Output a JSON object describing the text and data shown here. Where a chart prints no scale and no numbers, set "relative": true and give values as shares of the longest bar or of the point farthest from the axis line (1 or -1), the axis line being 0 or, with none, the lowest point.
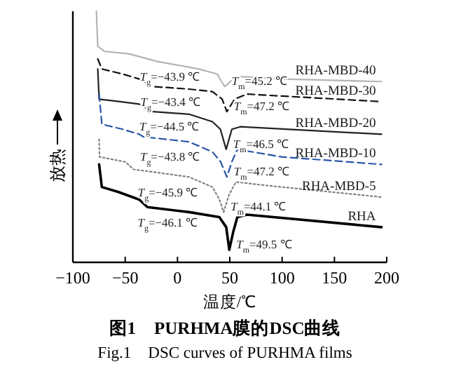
{
  "chart_data": {
    "type": "line",
    "relative": true,
    "title": "图1　PURHMA膜的DSC曲线",
    "subtitle": "Fig.1　DSC curves of PURHMA films",
    "xlabel": "温度/℃",
    "ylabel": "放热",
    "xlim": [
      -100,
      200
    ],
    "xticks": [
      -100,
      -50,
      0,
      50,
      100,
      150,
      200
    ],
    "tick_labels": "x",
    "grid": false,
    "legend": false,
    "marker": "none",
    "series": [
      {
        "name": "RHA-MBD-40",
        "color": "#b4b4b4",
        "line_style": "solid",
        "x": [
          -77.5,
          -76.2,
          -69.6,
          -45.8,
          -19.4,
          20.2,
          38,
          42,
          45.2,
          50.6,
          54.6,
          59.8,
          99.5,
          195
        ],
        "values": [
          1.0,
          0.86,
          0.84,
          0.83,
          0.8,
          0.77,
          0.75,
          0.72,
          0.7,
          0.72,
          0.74,
          0.74,
          0.73,
          0.72
        ]
      },
      {
        "name": "RHA-MBD-30",
        "color": "#111111",
        "line_style": "dashed",
        "x": [
          -76.2,
          -72.3,
          -52.4,
          -36.6,
          -23.4,
          11,
          33.4,
          42.7,
          47.2,
          54.6,
          66.4,
          195
        ],
        "values": [
          0.81,
          0.77,
          0.75,
          0.73,
          0.7,
          0.69,
          0.68,
          0.65,
          0.6,
          0.65,
          0.67,
          0.64
        ]
      },
      {
        "name": "RHA-MBD-20",
        "color": "#222222",
        "line_style": "solid",
        "x": [
          -76.2,
          -74.9,
          -55.1,
          -36.6,
          -23.4,
          11,
          33.4,
          41,
          46.5,
          52,
          60,
          195
        ],
        "values": [
          0.77,
          0.65,
          0.64,
          0.63,
          0.6,
          0.59,
          0.56,
          0.53,
          0.45,
          0.53,
          0.54,
          0.51
        ]
      },
      {
        "name": "RHA-MBD-10",
        "color": "#2a55a8",
        "line_style": "dashed",
        "x": [
          -74.9,
          -72.3,
          -52.4,
          -36.6,
          -32.6,
          11,
          33.4,
          41.3,
          47.2,
          51.9,
          57.2,
          99.5,
          195
        ],
        "values": [
          0.67,
          0.55,
          0.53,
          0.51,
          0.5,
          0.48,
          0.44,
          0.4,
          0.34,
          0.4,
          0.45,
          0.42,
          0.39
        ]
      },
      {
        "name": "RHA-MBD-5",
        "color": "#808080",
        "line_style": "dotted",
        "x": [
          -74.9,
          -74.5,
          -49.8,
          -41.9,
          -23.4,
          11,
          33.4,
          40,
          44.1,
          49.3,
          55.9,
          77,
          99.5,
          195
        ],
        "values": [
          0.49,
          0.42,
          0.4,
          0.37,
          0.36,
          0.34,
          0.3,
          0.25,
          0.2,
          0.27,
          0.32,
          0.31,
          0.3,
          0.26
        ]
      },
      {
        "name": "RHA",
        "color": "#000000",
        "line_style": "solid",
        "x": [
          -74.9,
          -72.3,
          -56.4,
          -36.6,
          -28.7,
          11,
          40,
          46.6,
          49.5,
          53.2,
          57.2,
          66.4,
          195
        ],
        "values": [
          0.39,
          0.3,
          0.28,
          0.25,
          0.22,
          0.2,
          0.18,
          0.14,
          0.05,
          0.12,
          0.18,
          0.19,
          0.14
        ]
      }
    ],
    "annotations": [
      {
        "text": "*T*$_{g}$=−43.9 ℃",
        "x": -43.9,
        "y": 0.83
      },
      {
        "text": "*T*$_{m}$=45.2 ℃",
        "x": 45.2,
        "y": 0.7
      },
      {
        "text": "*T*$_{g}$=−43.4 ℃",
        "x": -43.4,
        "y": 0.73
      },
      {
        "text": "*T*$_{m}$=47.2 ℃",
        "x": 47.2,
        "y": 0.6
      },
      {
        "text": "*T*$_{g}$=−44.5 ℃",
        "x": -44.5,
        "y": 0.63
      },
      {
        "text": "*T*$_{m}$=46.5 ℃",
        "x": 46.5,
        "y": 0.45
      },
      {
        "text": "*T*$_{g}$=−43.8 ℃",
        "x": -43.8,
        "y": 0.51
      },
      {
        "text": "*T*$_{m}$=47.2 ℃",
        "x": 47.2,
        "y": 0.34
      },
      {
        "text": "*T*$_{g}$=−45.9 ℃",
        "x": -45.9,
        "y": 0.37
      },
      {
        "text": "*T*$_{m}$=44.1 ℃",
        "x": 44.1,
        "y": 0.2
      },
      {
        "text": "*T*$_{g}$=−46.1 ℃",
        "x": -46.1,
        "y": 0.25
      },
      {
        "text": "*T*$_{m}$=49.5 ℃",
        "x": 49.5,
        "y": 0.05
      }
    ]
  }
}
